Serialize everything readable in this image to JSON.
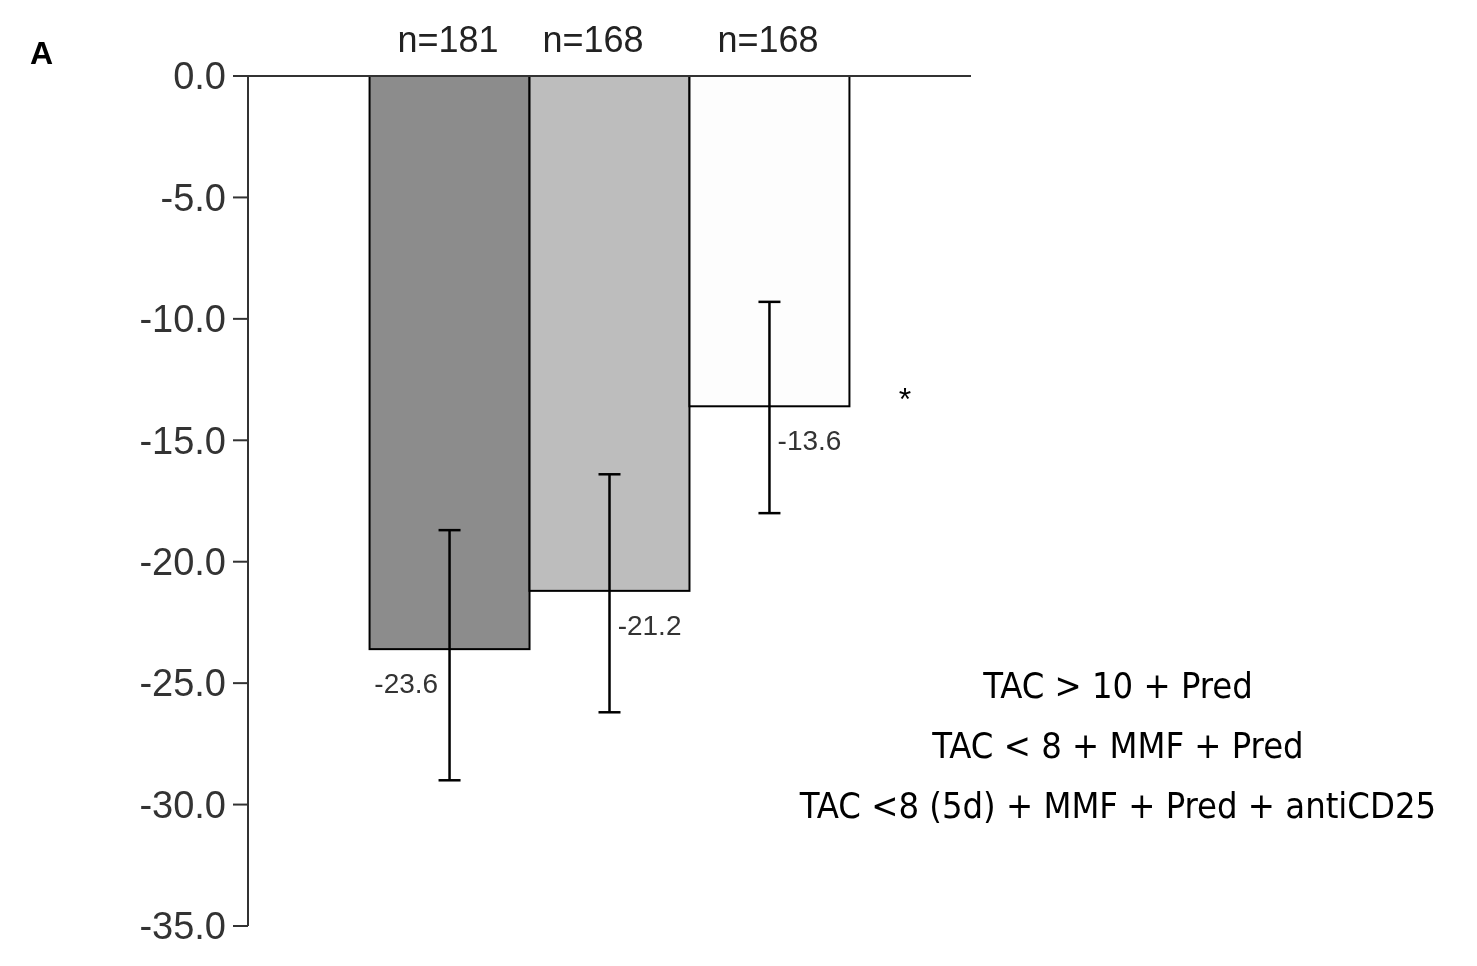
{
  "chart_data": {
    "type": "bar",
    "categories": [
      null,
      null,
      null
    ],
    "values": [
      -23.6,
      -21.2,
      -13.6
    ],
    "colors": [
      "#8c8c8c",
      "#bdbdbd",
      "#fdfdfd"
    ],
    "errors": [
      [
        -29.0,
        -18.7
      ],
      [
        -26.2,
        -16.4
      ],
      [
        -18.0,
        -9.3
      ]
    ],
    "data_labels": true,
    "ylim": [
      -35,
      0
    ],
    "yticks": [
      {
        "value": 0,
        "label": "0.0"
      },
      {
        "value": -5,
        "label": "-5.0"
      },
      {
        "value": -10,
        "label": "-10.0"
      },
      {
        "value": -15,
        "label": "-15.0"
      },
      {
        "value": -20,
        "label": "-20.0"
      },
      {
        "value": -25,
        "label": "-25.0"
      },
      {
        "value": -30,
        "label": "-30.0"
      },
      {
        "value": -35,
        "label": "-35.0"
      }
    ],
    "annotations": [
      "A",
      "n=181",
      "n=168",
      "n=168",
      "*",
      "TAC > 10 + Pred",
      "TAC < 8 + MMF + Pred",
      "TAC <8 (5d) + MMF + Pred + antiCD25"
    ]
  }
}
